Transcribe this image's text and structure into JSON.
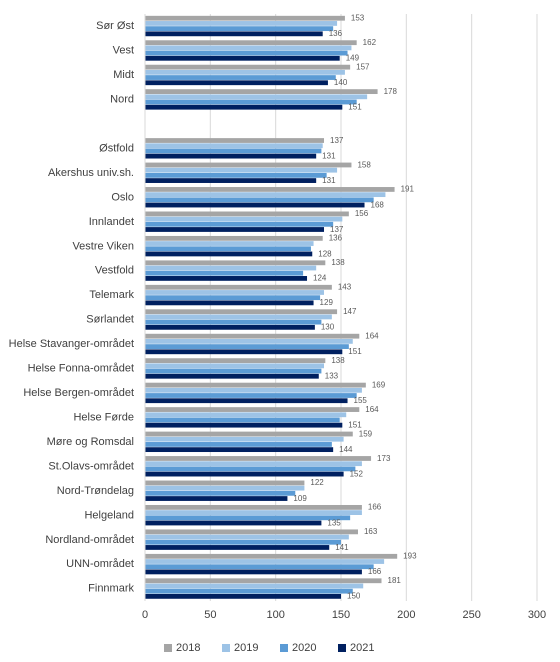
{
  "chart_data": {
    "type": "hbar",
    "categories": [
      "Sør Øst",
      "Vest",
      "Midt",
      "Nord",
      null,
      "Østfold",
      "Akershus univ.sh.",
      "Oslo",
      "Innlandet",
      "Vestre Viken",
      "Vestfold",
      "Telemark",
      "Sørlandet",
      "Helse Stavanger-området",
      "Helse Fonna-området",
      "Helse Bergen-området",
      "Helse Førde",
      "Møre og Romsdal",
      "St.Olavs-området",
      "Nord-Trøndelag",
      "Helgeland",
      "Nordland-området",
      "UNN-området",
      "Finnmark"
    ],
    "series": [
      {
        "name": "2018",
        "color": "#a5a5a5",
        "show_labels": true,
        "values": [
          153,
          162,
          157,
          178,
          null,
          137,
          158,
          191,
          156,
          136,
          138,
          143,
          147,
          164,
          138,
          169,
          164,
          159,
          173,
          122,
          166,
          163,
          193,
          181
        ]
      },
      {
        "name": "2019",
        "color": "#9dc3e6",
        "show_labels": false,
        "values": [
          147,
          158,
          153,
          170,
          null,
          136,
          147,
          184,
          151,
          129,
          131,
          137,
          143,
          159,
          137,
          166,
          154,
          152,
          166,
          122,
          166,
          156,
          183,
          167
        ]
      },
      {
        "name": "2020",
        "color": "#5b9bd5",
        "show_labels": false,
        "values": [
          144,
          155,
          146,
          162,
          null,
          135,
          139,
          175,
          144,
          127,
          121,
          134,
          135,
          156,
          135,
          162,
          149,
          143,
          161,
          115,
          157,
          150,
          175,
          159
        ]
      },
      {
        "name": "2021",
        "color": "#002060",
        "show_labels": true,
        "values": [
          136,
          149,
          140,
          151,
          null,
          131,
          131,
          168,
          137,
          128,
          124,
          129,
          130,
          151,
          133,
          155,
          151,
          144,
          152,
          109,
          135,
          141,
          166,
          150
        ]
      }
    ],
    "xlim": [
      0,
      300
    ],
    "xticks": [
      0,
      50,
      100,
      150,
      200,
      250,
      300
    ],
    "grid": true,
    "legend": "bottom"
  }
}
